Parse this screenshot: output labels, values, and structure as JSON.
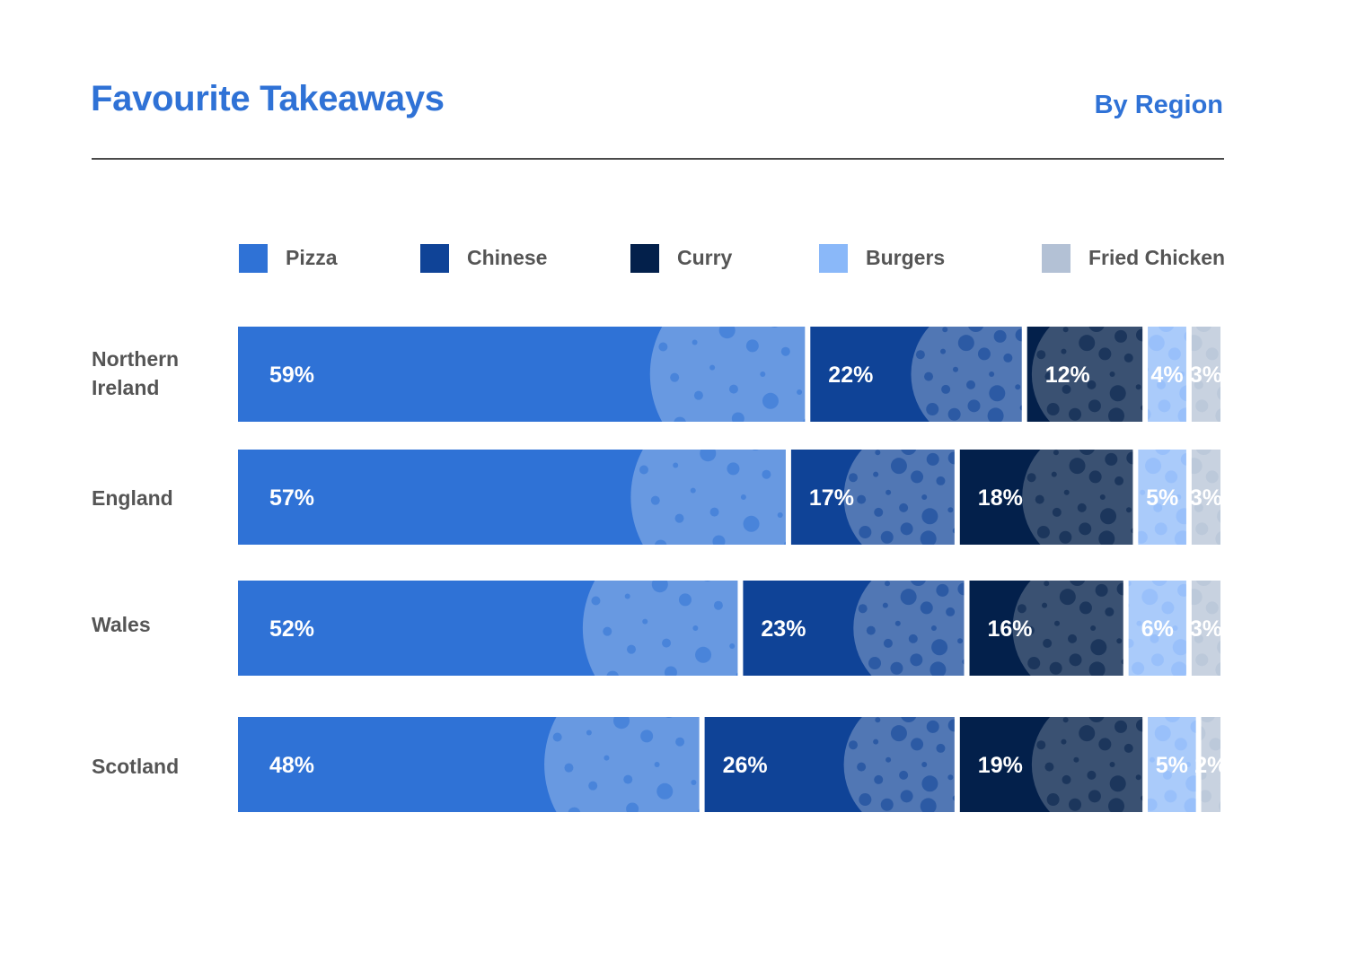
{
  "header": {
    "title": "Favourite Takeaways",
    "subtitle": "By Region"
  },
  "colors": {
    "title": "#2f72d6",
    "Pizza": "#2f72d6",
    "Chinese": "#0f4397",
    "Curry": "#03204b",
    "Burgers": "#8ab8f9",
    "Fried Chicken": "#b3c1d5"
  },
  "chart_data": {
    "type": "bar",
    "orientation": "horizontal",
    "stacked": true,
    "title": "Favourite Takeaways",
    "subtitle": "By Region",
    "unit": "%",
    "legend_position": "top",
    "categories": [
      "Northern\nIreland",
      "England",
      "Wales",
      "Scotland"
    ],
    "series": [
      {
        "name": "Pizza",
        "values": [
          59,
          57,
          52,
          48
        ],
        "labels": [
          "59%",
          "57%",
          "52%",
          "48%"
        ],
        "icon": "pizza-image"
      },
      {
        "name": "Chinese",
        "values": [
          22,
          17,
          23,
          26
        ],
        "labels": [
          "22%",
          "17%",
          "23%",
          "26%"
        ],
        "icon": "noodles-image"
      },
      {
        "name": "Curry",
        "values": [
          12,
          18,
          16,
          19
        ],
        "labels": [
          "12%",
          "18%",
          "16%",
          "19%"
        ],
        "icon": "curry-bowl-image"
      },
      {
        "name": "Burgers",
        "values": [
          4,
          5,
          6,
          5
        ],
        "labels": [
          "4%",
          "5%",
          "6%",
          "5%"
        ],
        "icon": "burger-image"
      },
      {
        "name": "Fried Chicken",
        "values": [
          3,
          3,
          3,
          2
        ],
        "labels": [
          "3%",
          "3%",
          "3%",
          "2%"
        ],
        "icon": "chicken-image"
      }
    ]
  }
}
